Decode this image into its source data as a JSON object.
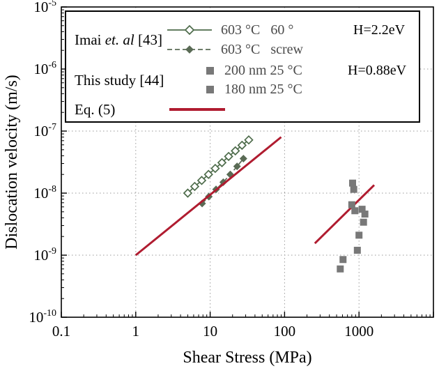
{
  "legend": {
    "imai": {
      "pre": "Imai ",
      "italic": "et. al",
      "post": " [43]"
    },
    "this_study": "This study [44]",
    "eq": "Eq. (5)",
    "entries": {
      "e60": "603 °C   60 °",
      "screw": "603 °C   screw",
      "nm200": "200 nm 25 °C",
      "nm180": "180 nm 25 °C"
    },
    "h_imai": "H=2.2eV",
    "h_this_study": "H=0.88eV"
  },
  "chart_data": {
    "type": "scatter",
    "title": "",
    "xlabel": "Shear Stress (MPa)",
    "ylabel": "Dislocation velocity (m/s)",
    "xscale": "log",
    "yscale": "log",
    "xlim": [
      0.1,
      10000
    ],
    "ylim": [
      1e-10,
      1e-05
    ],
    "grid": "dotted",
    "legend_position": "upper-left",
    "grid_x": [
      1,
      10,
      100,
      1000
    ],
    "grid_y": [
      1e-09,
      1e-08,
      1e-07,
      1e-06
    ],
    "x_ticks": [
      {
        "v": 0.1,
        "label": "0.1"
      },
      {
        "v": 1,
        "label": "1"
      },
      {
        "v": 10,
        "label": "10"
      },
      {
        "v": 100,
        "label": "100"
      },
      {
        "v": 1000,
        "label": "1000"
      }
    ],
    "y_ticks": [
      {
        "v": 1e-05,
        "base": "10",
        "sup": "-5"
      },
      {
        "v": 1e-06,
        "base": "10",
        "sup": "-6"
      },
      {
        "v": 1e-07,
        "base": "10",
        "sup": "-7"
      },
      {
        "v": 1e-08,
        "base": "10",
        "sup": "-8"
      },
      {
        "v": 1e-09,
        "base": "10",
        "sup": "-9"
      },
      {
        "v": 1e-10,
        "base": "10",
        "sup": "-10"
      }
    ],
    "series": [
      {
        "id": "s60",
        "name": "603 °C 60° (Imai et. al [43])",
        "marker": "open-diamond",
        "line": "solid",
        "color": "#4d6b4a",
        "points": [
          [
            5.0,
            1e-08
          ],
          [
            6.2,
            1.28e-08
          ],
          [
            7.7,
            1.6e-08
          ],
          [
            9.5,
            2e-08
          ],
          [
            11.7,
            2.5e-08
          ],
          [
            14.4,
            3.1e-08
          ],
          [
            17.7,
            3.9e-08
          ],
          [
            21.8,
            4.8e-08
          ],
          [
            26.8,
            5.9e-08
          ],
          [
            33.0,
            7.2e-08
          ]
        ]
      },
      {
        "id": "screw",
        "name": "603 °C screw (Imai et. al [43])",
        "marker": "filled-diamond",
        "line": "dashed",
        "color": "#5a6b55",
        "points": [
          [
            7.8,
            6.8e-09
          ],
          [
            9.6,
            8.8e-09
          ],
          [
            12.0,
            1.15e-08
          ],
          [
            15.0,
            1.5e-08
          ],
          [
            18.6,
            2e-08
          ],
          [
            23.0,
            2.7e-08
          ],
          [
            28.0,
            3.6e-08
          ]
        ]
      },
      {
        "id": "eq5a",
        "name": "Eq. (5) H=2.2eV",
        "marker": "none",
        "line": "solid",
        "color": "#b01c30",
        "width": 3,
        "points": [
          [
            1.0,
            1e-09
          ],
          [
            90,
            8e-08
          ]
        ]
      },
      {
        "id": "eq5b",
        "name": "Eq. (5) H=0.88eV",
        "marker": "none",
        "line": "solid",
        "color": "#b01c30",
        "width": 3,
        "points": [
          [
            255,
            1.55e-09
          ],
          [
            1600,
            1.35e-08
          ]
        ]
      },
      {
        "id": "nm200",
        "name": "200 nm 25 °C (This study [44])",
        "marker": "filled-square",
        "line": "none",
        "color": "#787878",
        "points": [
          [
            820,
            1.45e-08
          ],
          [
            850,
            1.15e-08
          ],
          [
            800,
            6.5e-09
          ],
          [
            880,
            5.2e-09
          ],
          [
            1100,
            5.5e-09
          ],
          [
            1200,
            4.6e-09
          ]
        ]
      },
      {
        "id": "nm180",
        "name": "180 nm 25 °C (This study [44])",
        "marker": "filled-square",
        "line": "none",
        "color": "#787878",
        "points": [
          [
            560,
            6e-10
          ],
          [
            610,
            8.5e-10
          ],
          [
            950,
            1.2e-09
          ],
          [
            1000,
            2.1e-09
          ],
          [
            1150,
            3.4e-09
          ]
        ]
      }
    ]
  }
}
